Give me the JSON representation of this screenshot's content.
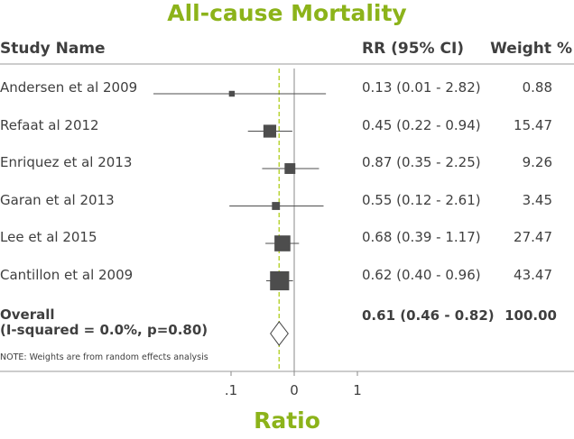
{
  "chart_data": {
    "type": "forest",
    "title": "All-cause Mortality",
    "xlabel": "Ratio",
    "xaxis": {
      "scale": "log",
      "ticks": [
        ".1",
        "0",
        "1"
      ]
    },
    "reference_line": {
      "value": 0.61,
      "color": "#b5d12a",
      "style": "dashed"
    },
    "null_line": {
      "value": 1
    },
    "columns": {
      "study": "Study Name",
      "rr": "RR (95% CI)",
      "weight": "Weight %"
    },
    "studies": [
      {
        "name": "Andersen et al 2009",
        "rr": 0.13,
        "lo": 0.01,
        "hi": 2.82,
        "rr_text": "0.13 (0.01 - 2.82)",
        "weight": 0.88,
        "weight_text": "0.88"
      },
      {
        "name": "Refaat al 2012",
        "rr": 0.45,
        "lo": 0.22,
        "hi": 0.94,
        "rr_text": "0.45 (0.22 - 0.94)",
        "weight": 15.47,
        "weight_text": "15.47"
      },
      {
        "name": "Enriquez et al 2013",
        "rr": 0.87,
        "lo": 0.35,
        "hi": 2.25,
        "rr_text": "0.87 (0.35 - 2.25)",
        "weight": 9.26,
        "weight_text": "9.26"
      },
      {
        "name": "Garan et al 2013",
        "rr": 0.55,
        "lo": 0.12,
        "hi": 2.61,
        "rr_text": "0.55 (0.12 - 2.61)",
        "weight": 3.45,
        "weight_text": "3.45"
      },
      {
        "name": "Lee et al 2015",
        "rr": 0.68,
        "lo": 0.39,
        "hi": 1.17,
        "rr_text": "0.68 (0.39 - 1.17)",
        "weight": 27.47,
        "weight_text": "27.47"
      },
      {
        "name": "Cantillon et al 2009",
        "rr": 0.62,
        "lo": 0.4,
        "hi": 0.96,
        "rr_text": "0.62 (0.40 - 0.96)",
        "weight": 43.47,
        "weight_text": "43.47"
      }
    ],
    "overall": {
      "label_line1": "Overall",
      "label_line2": "(I-squared = 0.0%, p=0.80)",
      "rr": 0.61,
      "lo": 0.46,
      "hi": 0.82,
      "rr_text": "0.61 (0.46 - 0.82)",
      "weight_text": "100.00"
    },
    "note": "NOTE: Weights are from random effects analysis",
    "colors": {
      "title": "#8cb31a",
      "marker": "#4d4d4d",
      "line": "#4d4d4d",
      "reference": "#b5d12a",
      "separator": "#9a9a9a"
    }
  }
}
